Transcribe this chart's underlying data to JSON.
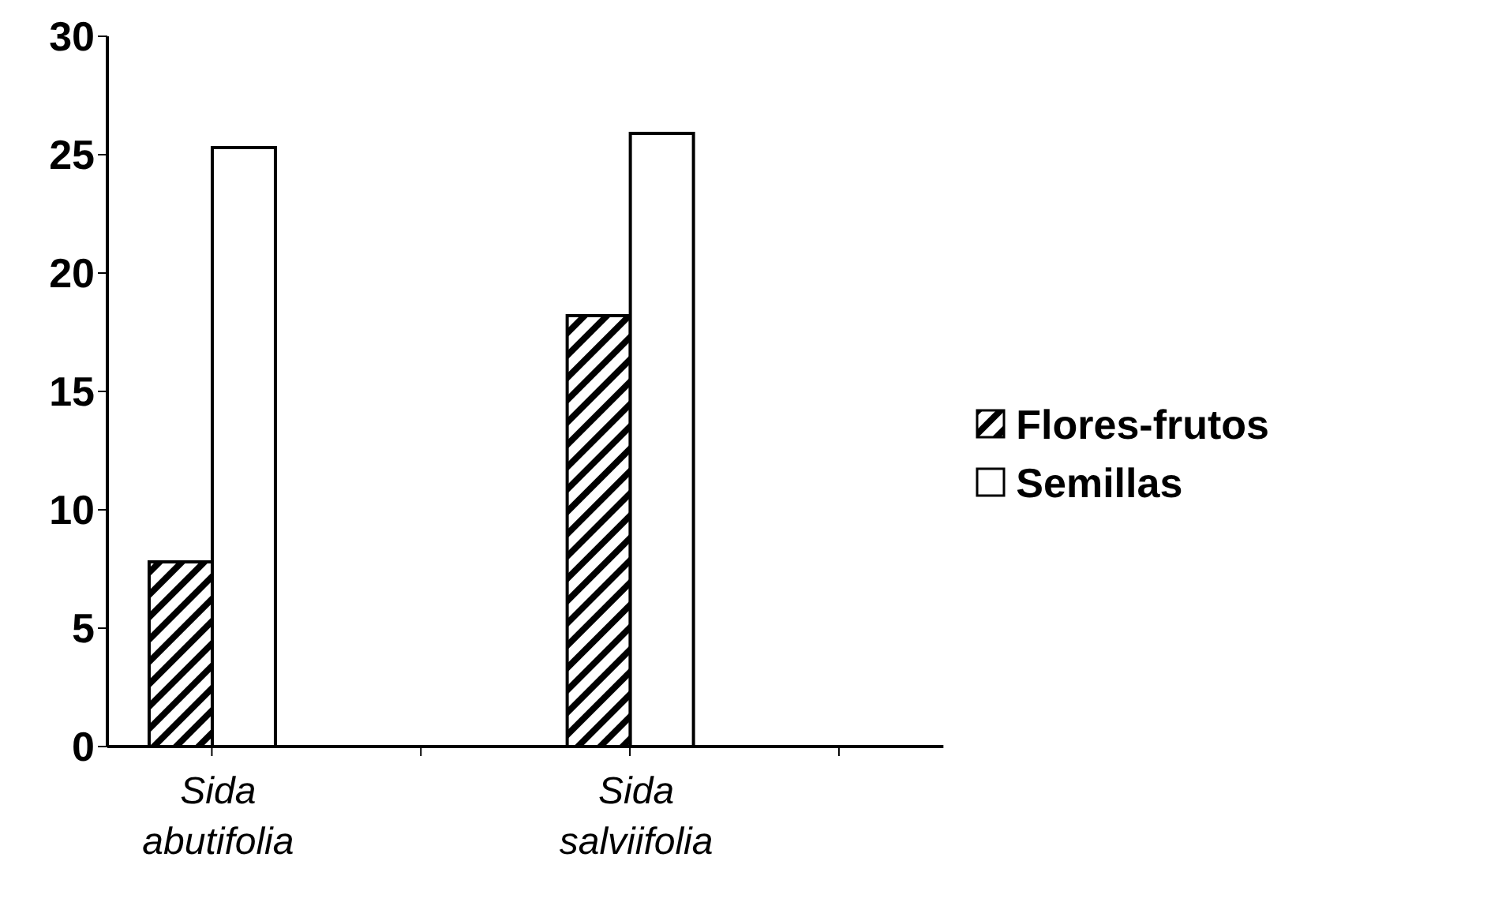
{
  "chart_data": {
    "type": "bar",
    "categories": [
      "Sida abutifolia",
      null,
      "Sida salviifolia",
      null
    ],
    "series": [
      {
        "name": "Flores-frutos",
        "color": "#000000",
        "values": [
          7.8,
          null,
          18.2,
          null
        ]
      },
      {
        "name": "Semillas",
        "color": "#ffffff",
        "values": [
          25.3,
          null,
          25.9,
          null
        ]
      }
    ],
    "ylim": [
      0,
      30
    ],
    "yticks": [
      0,
      5,
      10,
      15,
      20,
      25,
      30
    ],
    "legend": "right"
  }
}
